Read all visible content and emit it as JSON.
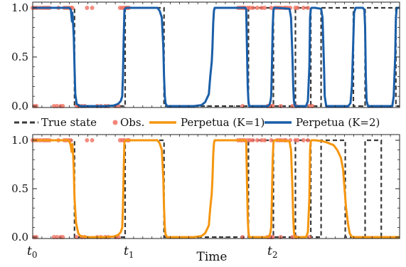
{
  "chart_data": {
    "type": "line",
    "xlabel": "Time",
    "x_marks": [
      {
        "label": "t",
        "sub": "0",
        "x": 0.0
      },
      {
        "label": "t",
        "sub": "1",
        "x": 0.3
      },
      {
        "label": "t",
        "sub": "2",
        "x": 0.7
      }
    ],
    "xlim": [
      0.0,
      1.0
    ],
    "ylim": [
      0.0,
      1.0
    ],
    "yticks": [
      "0.0",
      "0.5",
      "1.0"
    ],
    "legend": {
      "placement": "between-panels",
      "entries": [
        {
          "label": "True state",
          "style": "dashed",
          "color": "#3a3a3a"
        },
        {
          "label": "Obs.",
          "style": "marker",
          "color": "#f07060"
        },
        {
          "label": "Perpetua (K=1)",
          "style": "line",
          "color": "#f5960f"
        },
        {
          "label": "Perpetua (K=2)",
          "style": "line",
          "color": "#1a5ea8"
        }
      ]
    },
    "true_state": {
      "name": "True state",
      "x": [
        0.0,
        0.114,
        0.114,
        0.252,
        0.252,
        0.358,
        0.358,
        0.588,
        0.588,
        0.656,
        0.656,
        0.716,
        0.716,
        0.758,
        0.758,
        0.786,
        0.786,
        0.874,
        0.874,
        0.906,
        0.906,
        0.99,
        0.99,
        1.0
      ],
      "y": [
        1,
        1,
        0,
        0,
        1,
        1,
        0,
        0,
        1,
        1,
        0,
        0,
        1,
        1,
        0,
        0,
        1,
        1,
        0,
        0,
        1,
        1,
        0,
        0
      ]
    },
    "true_state_bottom_extra": {
      "x": [
        0.0,
        0.114,
        0.114,
        0.252,
        0.252,
        0.358,
        0.358,
        0.588,
        0.588,
        0.656,
        0.656,
        0.716,
        0.716,
        0.758,
        0.758,
        0.786,
        0.786,
        0.852,
        0.852,
        0.906,
        0.906,
        0.95,
        0.95,
        0.99,
        0.99,
        1.0
      ],
      "y": [
        1,
        1,
        0,
        0,
        1,
        1,
        0,
        0,
        1,
        1,
        0,
        0,
        1,
        1,
        0,
        0,
        1,
        1,
        0,
        0,
        1,
        1,
        0,
        0,
        0,
        0
      ]
    },
    "observations": {
      "name": "Obs.",
      "ones_x": [
        0.0,
        0.006,
        0.012,
        0.02,
        0.028,
        0.034,
        0.04,
        0.046,
        0.07,
        0.086,
        0.092,
        0.098,
        0.104,
        0.108,
        0.148,
        0.162,
        0.238,
        0.244,
        0.25,
        0.254,
        0.258,
        0.262,
        0.56,
        0.566,
        0.572,
        0.574,
        0.578,
        0.586,
        0.592,
        0.6,
        0.612,
        0.624,
        0.632,
        0.65,
        0.66,
        0.666,
        0.672,
        0.678,
        0.686,
        0.69,
        0.696,
        0.702,
        0.716,
        0.722,
        0.738,
        0.75
      ],
      "zeros_x": [
        0.004,
        0.01,
        0.058,
        0.066,
        0.076,
        0.082,
        0.12,
        0.126,
        0.134,
        0.142,
        0.176,
        0.186,
        0.198,
        0.206,
        0.226,
        0.234,
        0.572,
        0.64,
        0.646,
        0.65,
        0.654,
        0.676,
        0.708,
        0.718,
        0.754,
        0.762
      ],
      "ones_x_bottom": [
        0.0,
        0.006,
        0.012,
        0.02,
        0.028,
        0.034,
        0.04,
        0.046,
        0.07,
        0.086,
        0.092,
        0.098,
        0.104,
        0.148,
        0.162,
        0.238,
        0.244,
        0.25,
        0.258,
        0.262,
        0.56,
        0.566,
        0.572,
        0.578,
        0.586,
        0.592,
        0.6,
        0.612,
        0.624,
        0.632,
        0.65,
        0.666,
        0.672,
        0.678,
        0.686,
        0.69,
        0.702,
        0.716,
        0.722,
        0.738,
        0.75
      ],
      "zeros_x_bottom": [
        0.004,
        0.01,
        0.058,
        0.066,
        0.076,
        0.082,
        0.12,
        0.134,
        0.142,
        0.176,
        0.186,
        0.198,
        0.206,
        0.226,
        0.234,
        0.572,
        0.64,
        0.646,
        0.65,
        0.654,
        0.676,
        0.708,
        0.718,
        0.754
      ]
    },
    "panels": [
      {
        "id": "top",
        "series": [
          {
            "name": "Perpetua (K=2)",
            "color": "#1a5ea8",
            "x": [
              0.0,
              0.1,
              0.104,
              0.107,
              0.108,
              0.11,
              0.112,
              0.114,
              0.116,
              0.12,
              0.13,
              0.15,
              0.18,
              0.2,
              0.22,
              0.232,
              0.24,
              0.244,
              0.246,
              0.248,
              0.25,
              0.254,
              0.34,
              0.346,
              0.352,
              0.356,
              0.358,
              0.36,
              0.362,
              0.366,
              0.39,
              0.42,
              0.44,
              0.46,
              0.47,
              0.48,
              0.484,
              0.488,
              0.49,
              0.492,
              0.494,
              0.496,
              0.5,
              0.58,
              0.582,
              0.584,
              0.586,
              0.588,
              0.59,
              0.64,
              0.643,
              0.646,
              0.648,
              0.65,
              0.652,
              0.654,
              0.656,
              0.658,
              0.66,
              0.666,
              0.7,
              0.704,
              0.708,
              0.71,
              0.712,
              0.714,
              0.716,
              0.72,
              0.745,
              0.75,
              0.754,
              0.756,
              0.758,
              0.76,
              0.77,
              0.786,
              0.79,
              0.794,
              0.796,
              0.8,
              0.86,
              0.866,
              0.87,
              0.874,
              0.876,
              0.88,
              0.9,
              0.904,
              0.906,
              0.908,
              0.91,
              0.914,
              0.93,
              0.98,
              0.984,
              0.988,
              0.99,
              0.992,
              1.0
            ],
            "y": [
              1.0,
              1.0,
              0.98,
              0.86,
              0.95,
              0.84,
              0.7,
              0.4,
              0.12,
              0.02,
              0.0,
              0.0,
              0.0,
              0.0,
              0.005,
              0.02,
              0.05,
              0.1,
              0.3,
              0.7,
              0.98,
              1.0,
              1.0,
              0.97,
              0.9,
              0.6,
              0.3,
              0.1,
              0.03,
              0.0,
              0.0,
              0.0,
              0.0,
              0.01,
              0.04,
              0.12,
              0.3,
              0.45,
              0.6,
              0.85,
              0.97,
              1.0,
              1.0,
              1.0,
              0.98,
              0.6,
              0.2,
              0.05,
              0.0,
              0.0,
              0.005,
              0.02,
              0.05,
              0.1,
              0.4,
              0.8,
              0.97,
              1.0,
              1.0,
              1.0,
              0.99,
              0.9,
              0.5,
              0.2,
              0.05,
              0.01,
              0.0,
              0.0,
              0.0,
              0.05,
              0.4,
              0.9,
              0.99,
              1.0,
              1.0,
              0.99,
              0.9,
              0.4,
              0.1,
              0.0,
              0.0,
              0.03,
              0.2,
              0.7,
              0.95,
              1.0,
              1.0,
              0.98,
              0.8,
              0.3,
              0.05,
              0.0,
              0.0,
              0.0,
              0.1,
              0.5,
              0.9,
              1.0,
              1.0
            ]
          }
        ]
      },
      {
        "id": "bottom",
        "series": [
          {
            "name": "Perpetua (K=1)",
            "color": "#f5960f",
            "x": [
              0.0,
              0.096,
              0.1,
              0.104,
              0.106,
              0.108,
              0.11,
              0.112,
              0.114,
              0.118,
              0.124,
              0.13,
              0.15,
              0.2,
              0.22,
              0.232,
              0.24,
              0.244,
              0.246,
              0.248,
              0.25,
              0.254,
              0.34,
              0.346,
              0.352,
              0.356,
              0.358,
              0.36,
              0.362,
              0.366,
              0.39,
              0.42,
              0.44,
              0.46,
              0.47,
              0.48,
              0.484,
              0.488,
              0.49,
              0.492,
              0.494,
              0.496,
              0.5,
              0.58,
              0.582,
              0.584,
              0.586,
              0.588,
              0.59,
              0.64,
              0.643,
              0.646,
              0.648,
              0.65,
              0.652,
              0.654,
              0.656,
              0.658,
              0.66,
              0.666,
              0.7,
              0.704,
              0.708,
              0.71,
              0.712,
              0.714,
              0.716,
              0.72,
              0.745,
              0.75,
              0.754,
              0.756,
              0.758,
              0.76,
              0.77,
              0.79,
              0.8,
              0.82,
              0.83,
              0.84,
              0.846,
              0.85,
              0.854,
              0.86,
              0.864,
              0.868,
              0.874,
              0.9,
              1.0
            ],
            "y": [
              1.0,
              1.0,
              0.99,
              0.94,
              0.88,
              0.96,
              0.86,
              0.7,
              0.4,
              0.15,
              0.04,
              0.01,
              0.0,
              0.0,
              0.005,
              0.02,
              0.05,
              0.1,
              0.3,
              0.7,
              0.98,
              1.0,
              1.0,
              0.97,
              0.9,
              0.6,
              0.3,
              0.1,
              0.03,
              0.0,
              0.0,
              0.0,
              0.0,
              0.01,
              0.04,
              0.12,
              0.3,
              0.45,
              0.6,
              0.85,
              0.97,
              1.0,
              1.0,
              1.0,
              0.98,
              0.6,
              0.2,
              0.05,
              0.0,
              0.0,
              0.005,
              0.02,
              0.05,
              0.1,
              0.4,
              0.8,
              0.97,
              1.0,
              1.0,
              1.0,
              0.99,
              0.9,
              0.5,
              0.2,
              0.05,
              0.01,
              0.0,
              0.0,
              0.0,
              0.05,
              0.4,
              0.9,
              0.99,
              1.0,
              1.0,
              0.99,
              0.98,
              0.95,
              0.9,
              0.82,
              0.7,
              0.5,
              0.3,
              0.12,
              0.04,
              0.01,
              0.0,
              0.0,
              0.0
            ]
          }
        ]
      }
    ]
  }
}
